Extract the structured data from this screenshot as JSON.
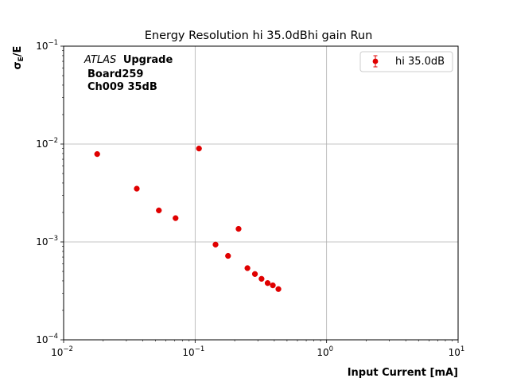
{
  "chart_data": {
    "type": "scatter",
    "title": "Energy Resolution hi 35.0dBhi gain Run",
    "xlabel": "Input Current [mA]",
    "ylabel": "σ_E/E",
    "xscale": "log",
    "yscale": "log",
    "xlim": [
      0.01,
      10
    ],
    "ylim": [
      0.0001,
      0.1
    ],
    "grid": true,
    "legend_position": "top-right",
    "x_ticks": [
      {
        "base": "10",
        "exp": "−2",
        "value": 0.01
      },
      {
        "base": "10",
        "exp": "−1",
        "value": 0.1
      },
      {
        "base": "10",
        "exp": "0",
        "value": 1
      },
      {
        "base": "10",
        "exp": "1",
        "value": 10
      }
    ],
    "y_ticks": [
      {
        "base": "10",
        "exp": "−4",
        "value": 0.0001
      },
      {
        "base": "10",
        "exp": "−3",
        "value": 0.001
      },
      {
        "base": "10",
        "exp": "−2",
        "value": 0.01
      },
      {
        "base": "10",
        "exp": "−1",
        "value": 0.1
      }
    ],
    "series": [
      {
        "name": "hi 35.0dB",
        "color": "#e00000",
        "x": [
          0.018,
          0.036,
          0.053,
          0.071,
          0.107,
          0.143,
          0.178,
          0.214,
          0.25,
          0.285,
          0.32,
          0.356,
          0.39,
          0.43
        ],
        "y": [
          0.0079,
          0.0035,
          0.0021,
          0.00175,
          0.009,
          0.00094,
          0.00072,
          0.00136,
          0.00054,
          0.00047,
          0.00042,
          0.00038,
          0.00036,
          0.00033
        ]
      }
    ],
    "annotation": {
      "line1_italic": "ATLAS",
      "line1_bold": "Upgrade",
      "line2": "Board259",
      "line3": "Ch009 35dB"
    }
  }
}
